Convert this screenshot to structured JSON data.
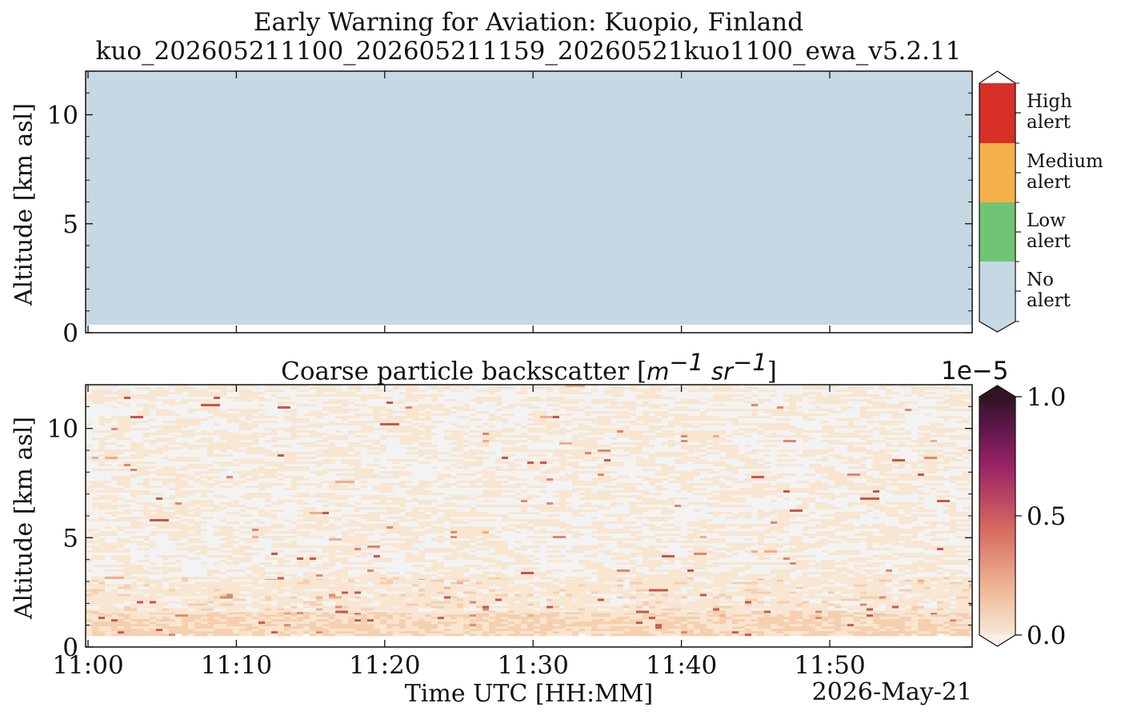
{
  "title_line1": "Early Warning for Aviation: Kuopio, Finland",
  "title_line2": "kuo_202605211100_202605211159_20260521kuo1100_ewa_v5.2.11",
  "panel_bottom_title": "Coarse particle backscatter [",
  "panel_bottom_units": {
    "base1": "m",
    "exp1": "−1",
    "base2": "sr",
    "exp2": "−1",
    "close": "]"
  },
  "ylabel": "Altitude [km asl]",
  "xlabel": "Time UTC [HH:MM]",
  "date": "2026-May-21",
  "colorbar_exponent": "1e−5",
  "chart_data": [
    {
      "type": "heatmap",
      "panel": "alert",
      "x_range": [
        "11:00",
        "11:59"
      ],
      "ylim": [
        0,
        12
      ],
      "yticks": [
        "0",
        "5",
        "10"
      ],
      "xtick_labels": [
        "11:00",
        "11:10",
        "11:20",
        "11:30",
        "11:40",
        "11:50"
      ],
      "data_bottom_km": 0.4,
      "uniform_class": "No alert",
      "legend": {
        "classes": [
          {
            "label_line1": "High",
            "label_line2": "alert",
            "color": "#d73027"
          },
          {
            "label_line1": "Medium",
            "label_line2": "alert",
            "color": "#f6b14a"
          },
          {
            "label_line1": "Low",
            "label_line2": "alert",
            "color": "#70c473"
          },
          {
            "label_line1": "No",
            "label_line2": "alert",
            "color": "#c5d8e3"
          }
        ]
      }
    },
    {
      "type": "heatmap",
      "panel": "coarse particle backscatter",
      "x_range": [
        "11:00",
        "11:59"
      ],
      "ylim": [
        0,
        12
      ],
      "yticks": [
        "0",
        "5",
        "10"
      ],
      "xtick_labels": [
        "11:00",
        "11:10",
        "11:20",
        "11:30",
        "11:40",
        "11:50"
      ],
      "data_bottom_km": 0.6,
      "colorbar": {
        "min": 0.0,
        "max": 1.0,
        "ticks": [
          "0.0",
          "0.5",
          "1.0"
        ],
        "scale_label": "1e−5"
      },
      "description_layers": [
        {
          "altitude_km": [
            0.6,
            1.6
          ],
          "value_approx": 0.05
        },
        {
          "altitude_km": [
            1.6,
            3.2
          ],
          "value_approx": 0.03
        },
        {
          "altitude_km": [
            3.2,
            12
          ],
          "value_approx": 0.01
        }
      ]
    }
  ]
}
